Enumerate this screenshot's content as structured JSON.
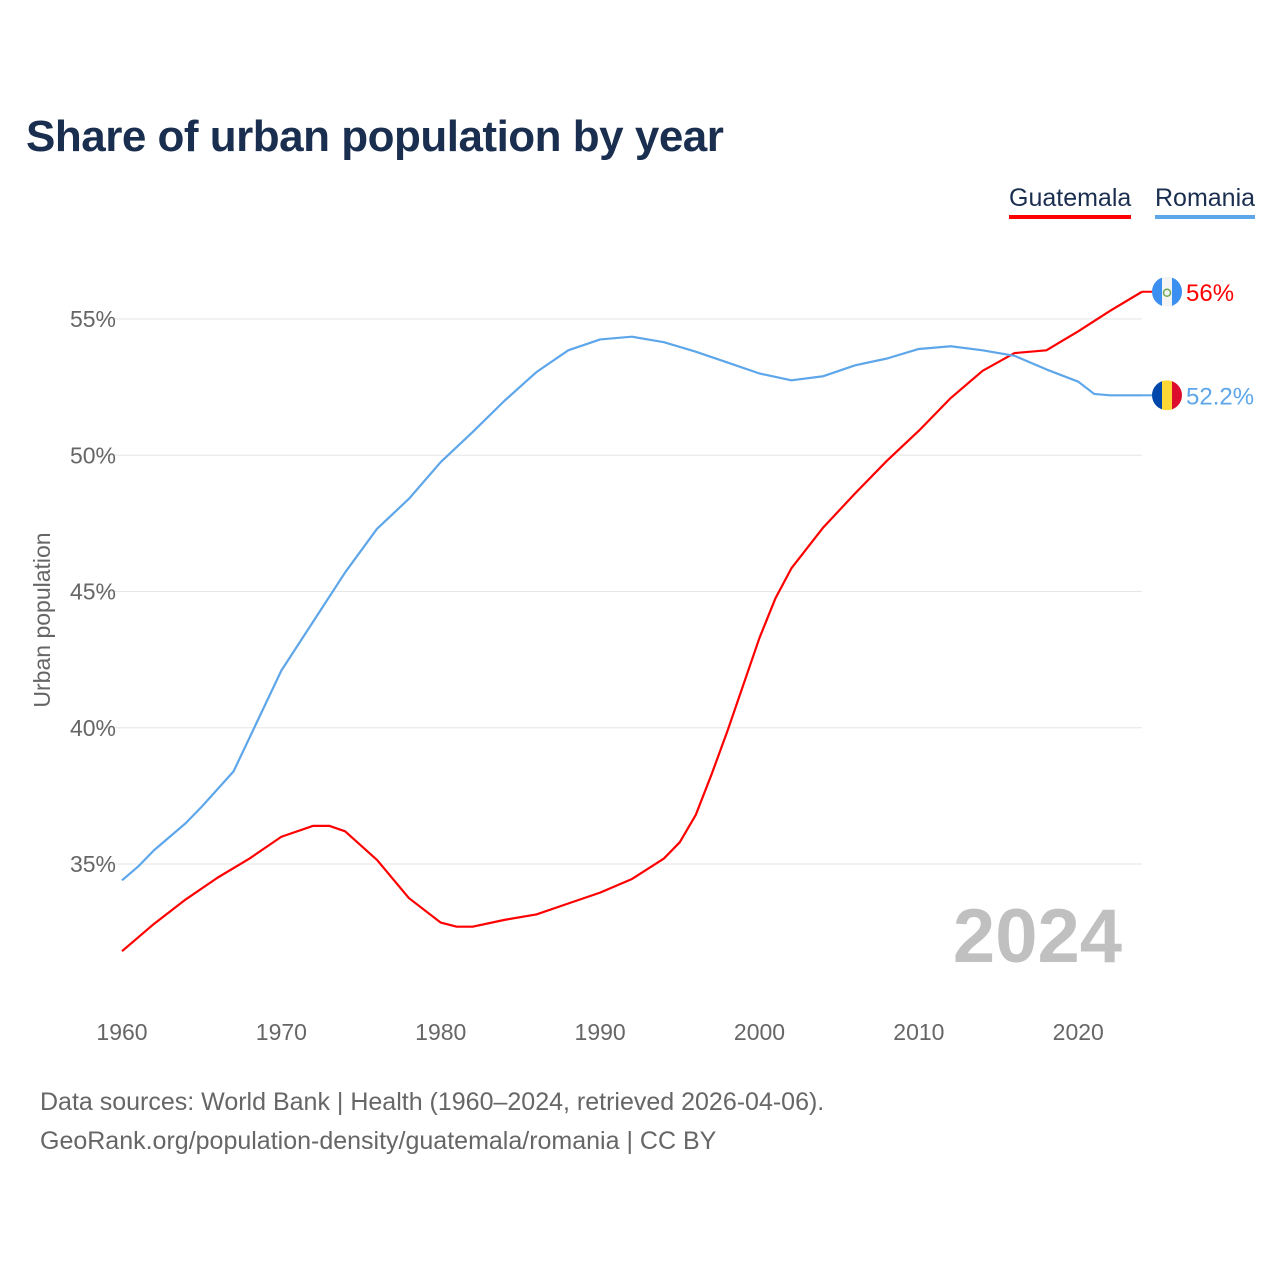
{
  "title": "Share of urban population by year",
  "legend": [
    {
      "label": "Guatemala",
      "color": "#ff0000"
    },
    {
      "label": "Romania",
      "color": "#5ea6ea"
    }
  ],
  "chart_data": {
    "type": "line",
    "title": "Share of urban population by year",
    "xlabel": "",
    "ylabel": "Urban population",
    "xlim": [
      1960,
      2024
    ],
    "ylim": [
      31,
      57
    ],
    "xticks": [
      1960,
      1970,
      1980,
      1990,
      2000,
      2010,
      2020
    ],
    "xtick_labels": [
      "1960",
      "1970",
      "1980",
      "1990",
      "2000",
      "2010",
      "2020"
    ],
    "yticks": [
      35,
      40,
      45,
      50,
      55
    ],
    "ytick_labels": [
      "35%",
      "40%",
      "45%",
      "50%",
      "55%"
    ],
    "grid": true,
    "legend_position": "top-right",
    "annotation": "2024",
    "series": [
      {
        "name": "Guatemala",
        "color": "#ff0000",
        "end_label": "56%",
        "flag": "guatemala-flag",
        "x": [
          1960,
          1962,
          1964,
          1966,
          1968,
          1970,
          1972,
          1973,
          1974,
          1976,
          1978,
          1980,
          1981,
          1982,
          1984,
          1986,
          1988,
          1990,
          1992,
          1994,
          1995,
          1996,
          1997,
          1998,
          1999,
          2000,
          2001,
          2002,
          2004,
          2006,
          2008,
          2010,
          2012,
          2014,
          2016,
          2018,
          2019,
          2020,
          2022,
          2024
        ],
        "y": [
          31.8,
          32.8,
          33.7,
          34.5,
          35.2,
          36.0,
          36.4,
          36.4,
          36.2,
          35.15,
          33.75,
          32.85,
          32.7,
          32.7,
          32.95,
          33.15,
          33.55,
          33.95,
          34.45,
          35.2,
          35.8,
          36.8,
          38.3,
          39.9,
          41.6,
          43.3,
          44.75,
          45.85,
          47.35,
          48.6,
          49.8,
          50.9,
          52.1,
          53.1,
          53.75,
          53.85,
          54.2,
          54.55,
          55.3,
          56.0
        ]
      },
      {
        "name": "Romania",
        "color": "#5ea6ea",
        "end_label": "52.2%",
        "flag": "romania-flag",
        "x": [
          1960,
          1961,
          1962,
          1963,
          1964,
          1965,
          1967,
          1970,
          1972,
          1974,
          1976,
          1978,
          1980,
          1982,
          1984,
          1986,
          1988,
          1990,
          1992,
          1994,
          1996,
          1998,
          2000,
          2002,
          2004,
          2006,
          2008,
          2010,
          2012,
          2014,
          2016,
          2018,
          2020,
          2021,
          2022,
          2024
        ],
        "y": [
          34.4,
          34.9,
          35.5,
          36.0,
          36.5,
          37.1,
          38.4,
          42.1,
          43.9,
          45.7,
          47.3,
          48.4,
          49.75,
          50.85,
          52.0,
          53.05,
          53.85,
          54.25,
          54.35,
          54.15,
          53.8,
          53.4,
          53.0,
          52.75,
          52.9,
          53.3,
          53.55,
          53.9,
          54.0,
          53.85,
          53.65,
          53.15,
          52.7,
          52.25,
          52.2,
          52.2
        ]
      }
    ]
  },
  "footer": {
    "line1": "Data sources: World Bank | Health (1960–2024, retrieved 2026-04-06).",
    "line2": "GeoRank.org/population-density/guatemala/romania | CC BY"
  }
}
